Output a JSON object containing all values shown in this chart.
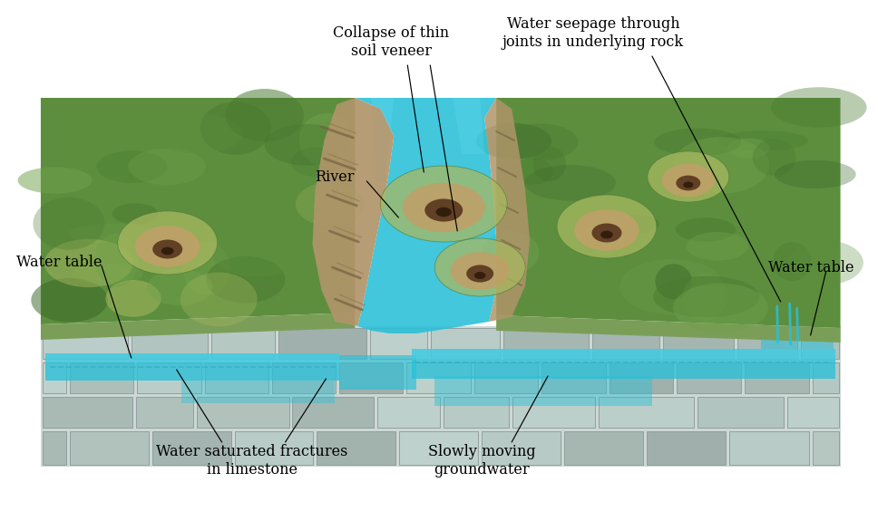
{
  "bg": "#ffffff",
  "labels": {
    "water_table_left": "Water table",
    "water_table_right": "Water table",
    "river": "River",
    "collapse": "Collapse of thin\nsoil veneer",
    "seepage": "Water seepage through\njoints in underlying rock",
    "saturated": "Water saturated fractures\nin limestone",
    "groundwater": "Slowly moving\ngroundwater"
  },
  "colors": {
    "grass_dark": "#4a7a30",
    "grass_med": "#5c8e3e",
    "grass_light": "#6fa04a",
    "grass_yellow": "#a8b860",
    "rock_tan": "#b0956a",
    "rock_brown": "#8a7248",
    "rock_stripe": "#786040",
    "water_cyan": "#28c0d8",
    "water_light": "#60d8ee",
    "limestone_base": "#b8c8c4",
    "limestone_light": "#ccd8d4",
    "limestone_dark": "#98aaa6",
    "stone_mortar": "#8a9a96",
    "white": "#ffffff",
    "black": "#000000",
    "dashed_blue": "#38b0c8",
    "front_face_green": "#7a9e58",
    "shadow_green": "#3a6828"
  },
  "font": "DejaVu Serif",
  "fontsize": 11.5
}
